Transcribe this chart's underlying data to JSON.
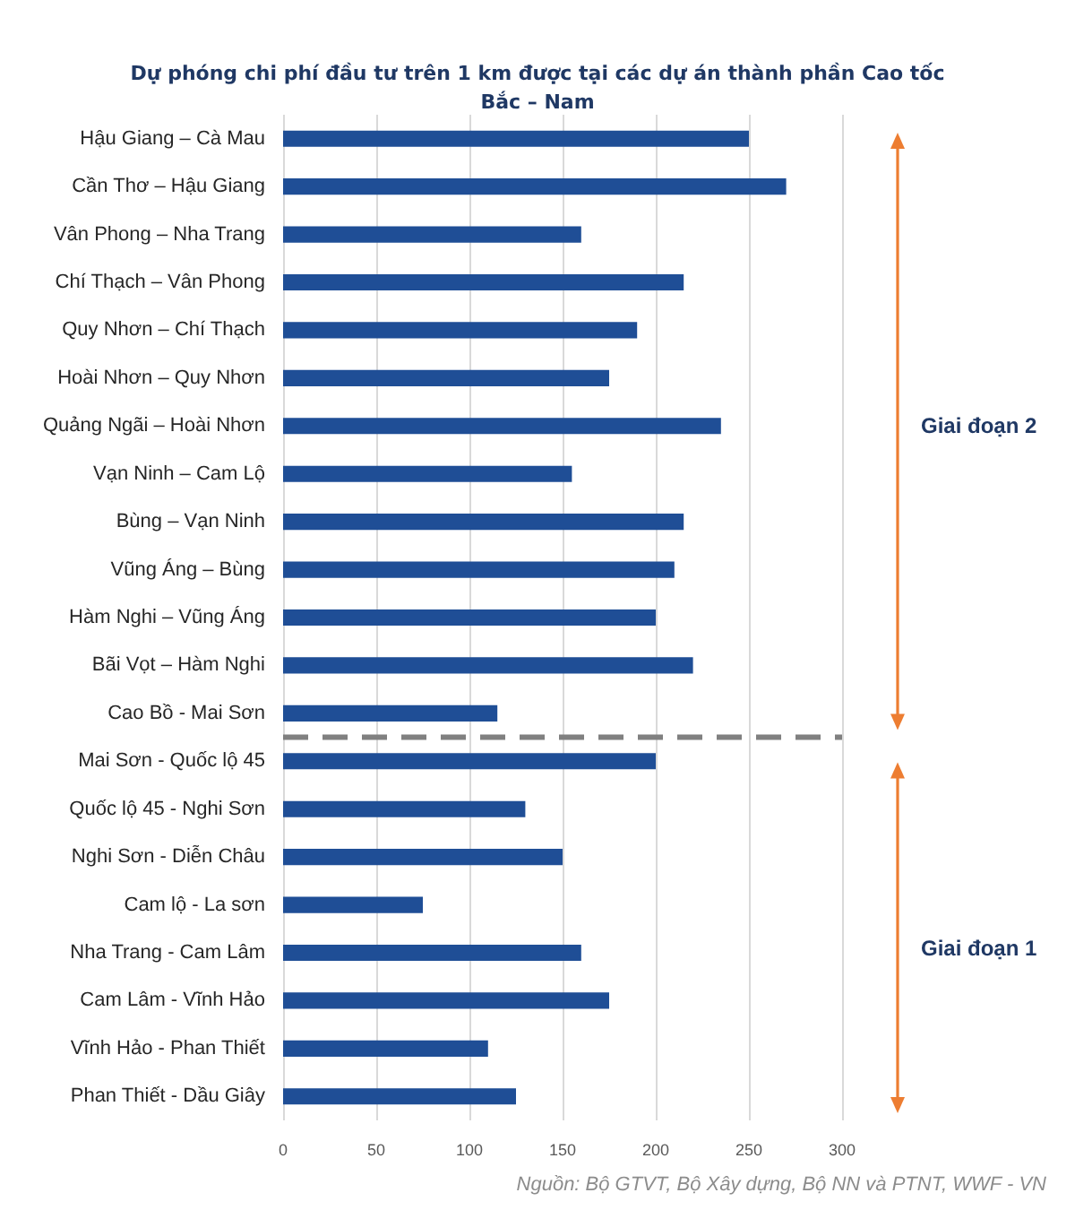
{
  "chart_data": {
    "type": "bar",
    "orientation": "horizontal",
    "title": "Dự phóng chi phí đầu tư trên 1 km được tại các dự án thành phần Cao tốc Bắc – Nam",
    "categories": [
      "Hậu Giang – Cà Mau",
      "Cần Thơ – Hậu Giang",
      "Vân Phong – Nha Trang",
      "Chí Thạch – Vân Phong",
      "Quy Nhơn – Chí Thạch",
      "Hoài Nhơn – Quy Nhơn",
      "Quảng Ngãi – Hoài Nhơn",
      "Vạn Ninh – Cam Lộ",
      "Bùng – Vạn Ninh",
      "Vũng Áng – Bùng",
      "Hàm Nghi – Vũng Áng",
      "Bãi Vọt – Hàm Nghi",
      "Cao Bồ - Mai Sơn",
      "Mai Sơn - Quốc lộ 45",
      "Quốc lộ 45 - Nghi Sơn",
      "Nghi Sơn - Diễn Châu",
      "Cam lộ - La sơn",
      "Nha Trang - Cam Lâm",
      "Cam Lâm - Vĩnh Hảo",
      "Vĩnh Hảo - Phan Thiết",
      "Phan Thiết - Dầu Giây"
    ],
    "values": [
      250,
      270,
      160,
      215,
      190,
      175,
      235,
      155,
      215,
      210,
      200,
      220,
      115,
      200,
      130,
      150,
      75,
      160,
      175,
      110,
      125
    ],
    "color": "#1f4e96",
    "xlim": [
      0,
      300
    ],
    "xticks": [
      0,
      50,
      100,
      150,
      200,
      250,
      300
    ],
    "grid": "x",
    "ref_lines": [
      {
        "axis": "y",
        "value": "Mai Sơn - Quốc lộ 45",
        "color": "#808080",
        "line_style": "dashed"
      }
    ],
    "annotations": [
      "Giai đoạn 2",
      "Giai đoạn 1",
      "Nguồn: Bộ GTVT, Bộ Xây dựng, Bộ NN và PTNT, WWF - VN"
    ]
  }
}
